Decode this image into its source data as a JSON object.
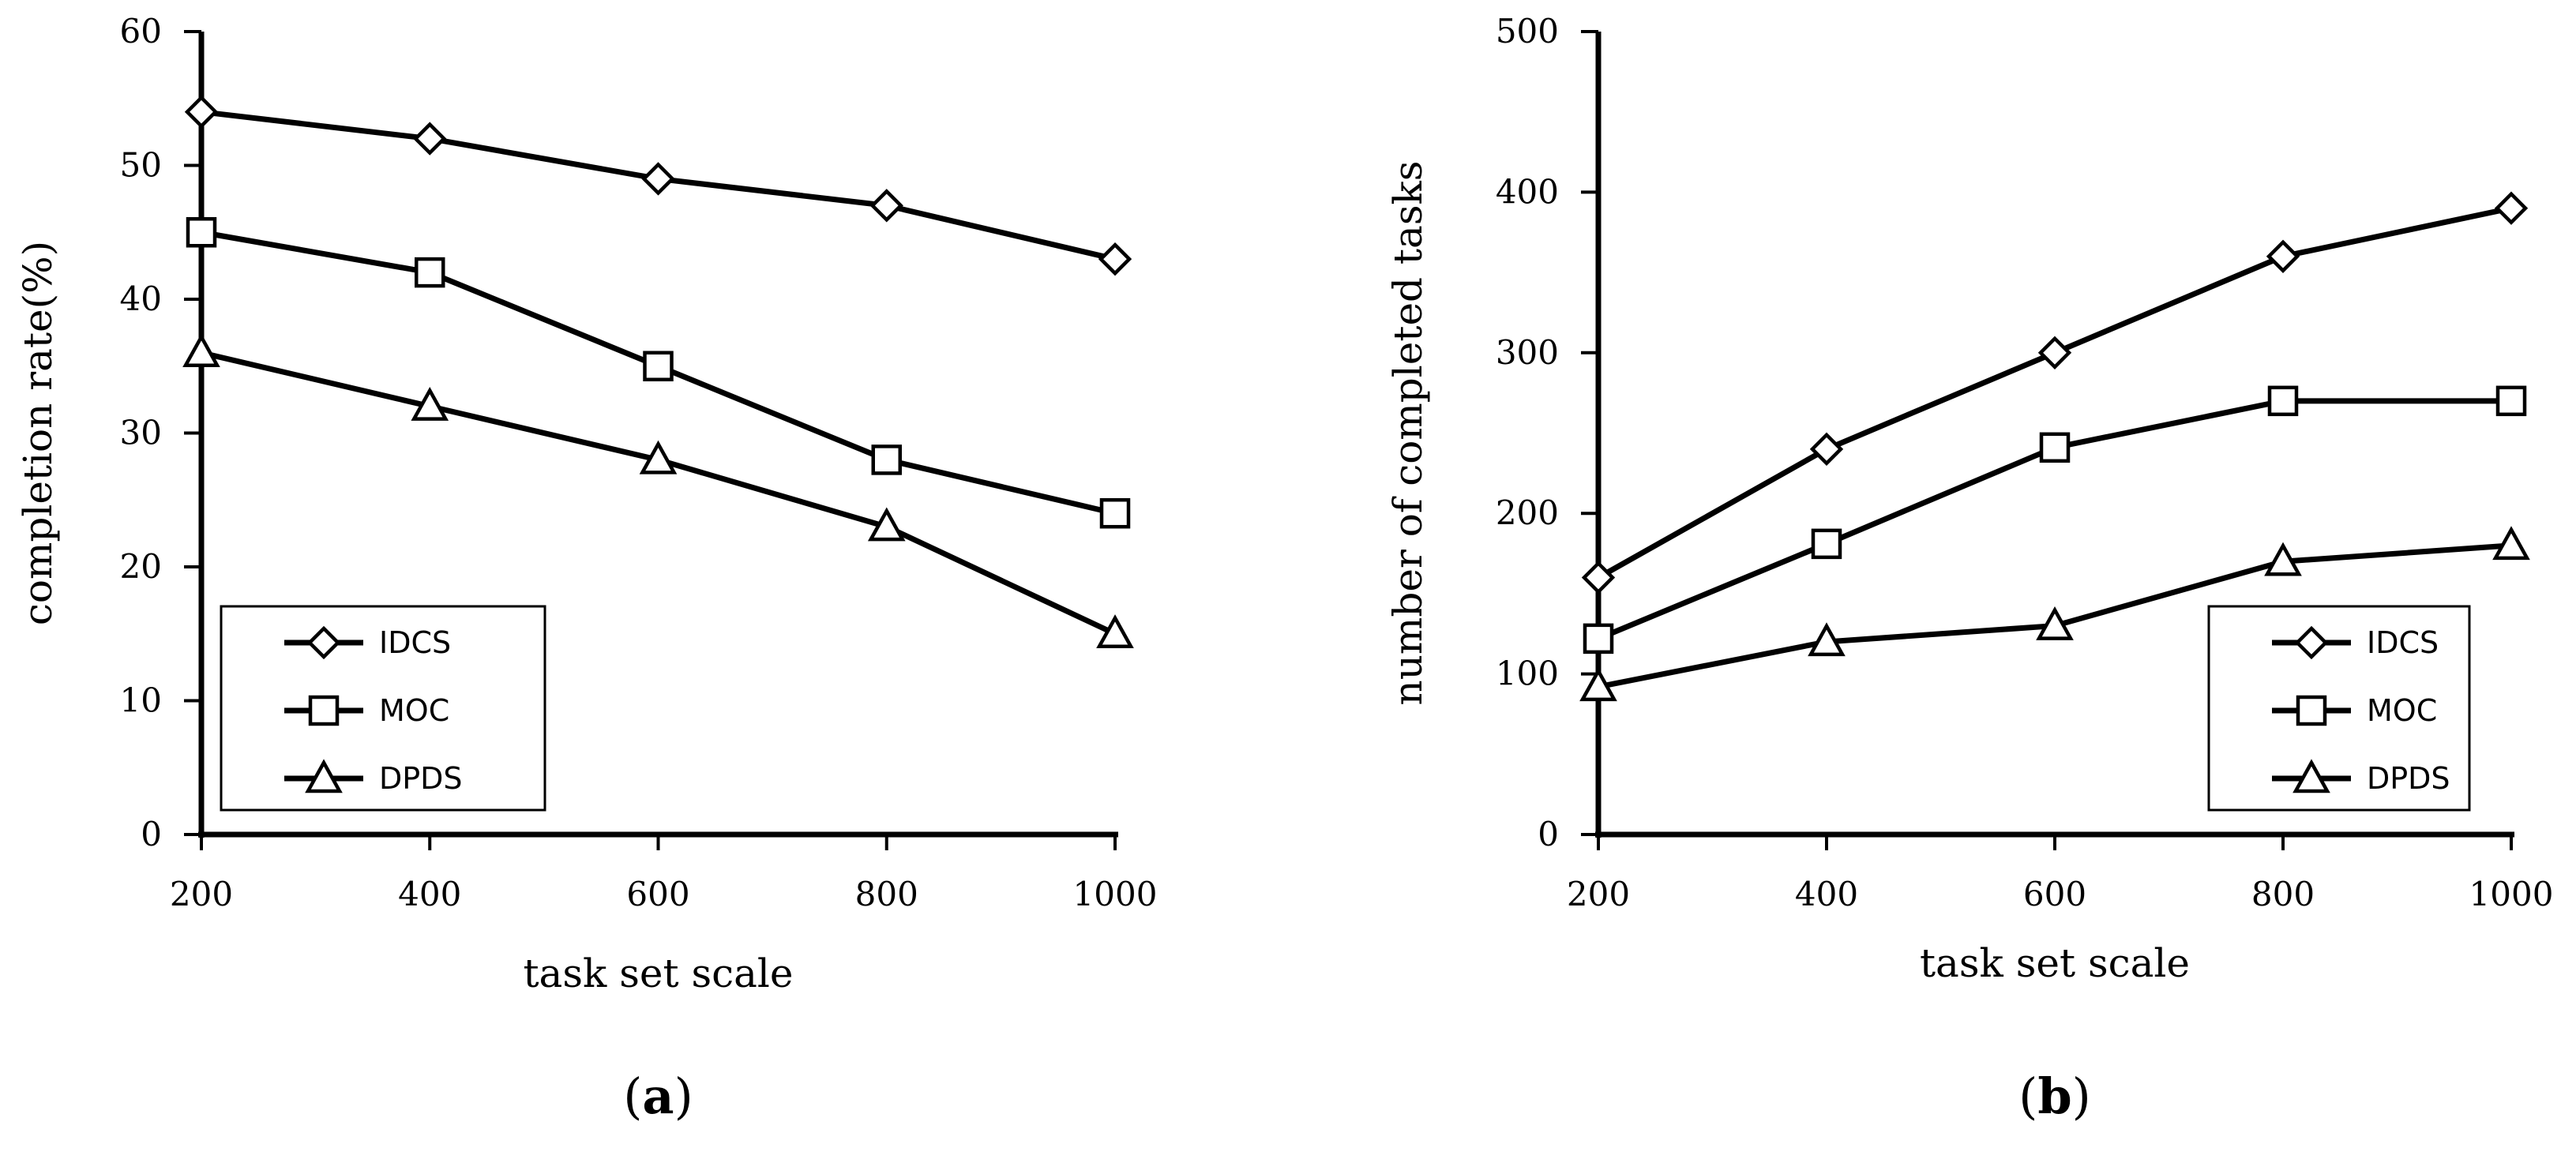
{
  "chart_data": [
    {
      "type": "line",
      "panel_label": "a",
      "xlabel": "task set scale",
      "ylabel": "completion rate(%)",
      "x": [
        200,
        400,
        600,
        800,
        1000
      ],
      "x_ticks": [
        "200",
        "400",
        "600",
        "800",
        "1000"
      ],
      "ylim": [
        0,
        60
      ],
      "y_ticks": [
        "0",
        "10",
        "20",
        "30",
        "40",
        "50",
        "60"
      ],
      "grid": false,
      "legend_position": "bottom-left",
      "series": [
        {
          "name": "IDCS",
          "marker": "diamond",
          "values": [
            54,
            52,
            49,
            47,
            43
          ]
        },
        {
          "name": "MOC",
          "marker": "square",
          "values": [
            45,
            42,
            35,
            28,
            24
          ]
        },
        {
          "name": "DPDS",
          "marker": "triangle",
          "values": [
            36,
            32,
            28,
            23,
            15
          ]
        }
      ]
    },
    {
      "type": "line",
      "panel_label": "b",
      "xlabel": "task set scale",
      "ylabel": "number of completed tasks",
      "x": [
        200,
        400,
        600,
        800,
        1000
      ],
      "x_ticks": [
        "200",
        "400",
        "600",
        "800",
        "1000"
      ],
      "ylim": [
        0,
        500
      ],
      "y_ticks": [
        "0",
        "100",
        "200",
        "300",
        "400",
        "500"
      ],
      "grid": false,
      "legend_position": "bottom-right",
      "series": [
        {
          "name": "IDCS",
          "marker": "diamond",
          "values": [
            160,
            240,
            300,
            360,
            390
          ]
        },
        {
          "name": "MOC",
          "marker": "square",
          "values": [
            122,
            181,
            241,
            270,
            270
          ]
        },
        {
          "name": "DPDS",
          "marker": "triangle",
          "values": [
            92,
            120,
            130,
            170,
            180
          ]
        }
      ]
    }
  ]
}
